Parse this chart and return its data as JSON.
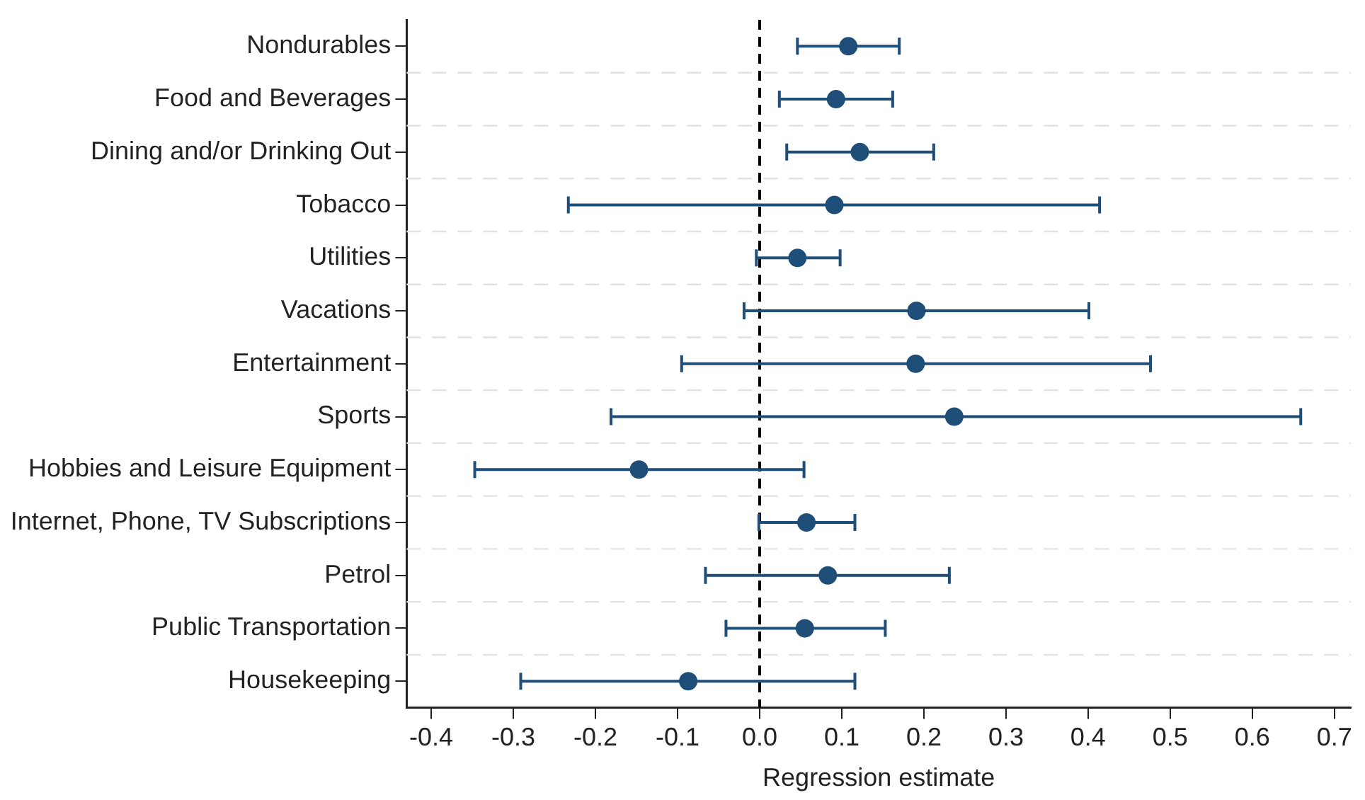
{
  "chart_data": {
    "type": "scatter",
    "orientation": "horizontal",
    "xlabel": "Regression estimate",
    "categories": [
      "Nondurables",
      "Food and Beverages",
      "Dining and/or Drinking Out",
      "Tobacco",
      "Utilities",
      "Vacations",
      "Entertainment",
      "Sports",
      "Hobbies and Leisure Equipment",
      "Internet, Phone, TV Subscriptions",
      "Petrol",
      "Public Transportation",
      "Housekeeping"
    ],
    "values": [
      0.108,
      0.093,
      0.122,
      0.091,
      0.046,
      0.191,
      0.19,
      0.237,
      -0.147,
      0.057,
      0.083,
      0.055,
      -0.087
    ],
    "errors": [
      [
        0.046,
        0.17
      ],
      [
        0.024,
        0.162
      ],
      [
        0.033,
        0.212
      ],
      [
        -0.233,
        0.414
      ],
      [
        -0.004,
        0.098
      ],
      [
        -0.019,
        0.401
      ],
      [
        -0.095,
        0.476
      ],
      [
        -0.181,
        0.659
      ],
      [
        -0.347,
        0.054
      ],
      [
        -0.001,
        0.116
      ],
      [
        -0.066,
        0.231
      ],
      [
        -0.041,
        0.153
      ],
      [
        -0.291,
        0.116
      ]
    ],
    "color": "#1f4e79",
    "xlim": [
      -0.43,
      0.72
    ],
    "xticks": [
      {
        "value": -0.4,
        "label": "-0.4"
      },
      {
        "value": -0.3,
        "label": "-0.3"
      },
      {
        "value": -0.2,
        "label": "-0.2"
      },
      {
        "value": -0.1,
        "label": "-0.1"
      },
      {
        "value": 0,
        "label": "0.0"
      },
      {
        "value": 0.1,
        "label": "0.1"
      },
      {
        "value": 0.2,
        "label": "0.2"
      },
      {
        "value": 0.3,
        "label": "0.3"
      },
      {
        "value": 0.4,
        "label": "0.4"
      },
      {
        "value": 0.5,
        "label": "0.5"
      },
      {
        "value": 0.6,
        "label": "0.6"
      },
      {
        "value": 0.7,
        "label": "0.7"
      }
    ],
    "ref_lines": [
      {
        "axis": "x",
        "value": 0,
        "color": "#000000",
        "line_style": "dashed"
      }
    ],
    "grid": "y",
    "marker": "circle",
    "legend": false
  }
}
